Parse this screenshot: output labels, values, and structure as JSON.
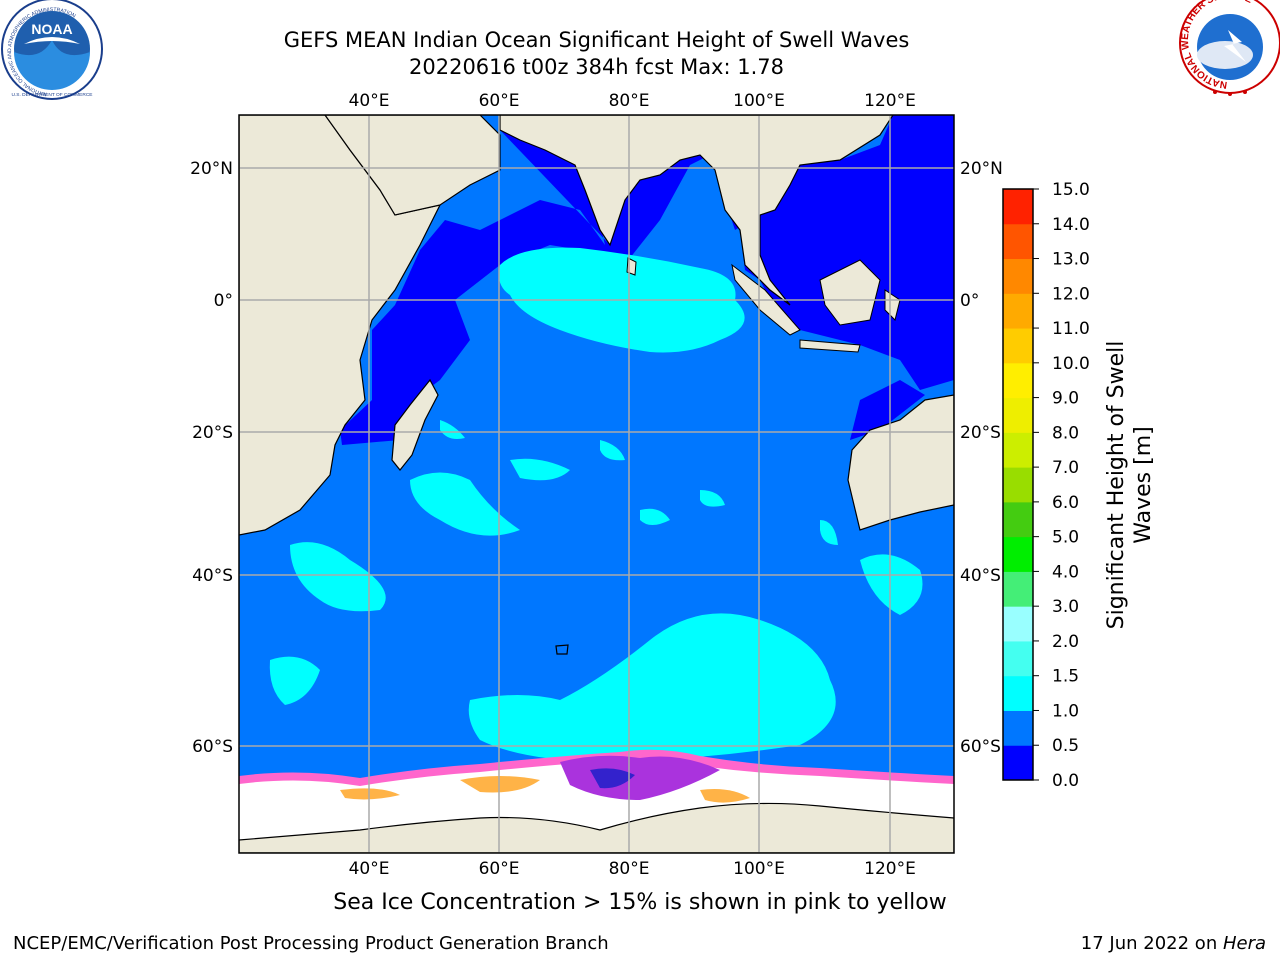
{
  "title": {
    "line1": "GEFS MEAN Indian Ocean Significant Height of Swell Waves",
    "line2": "20220616 t00z 384h fcst   Max: 1.78"
  },
  "map": {
    "lon_labels": [
      "40°E",
      "60°E",
      "80°E",
      "100°E",
      "120°E"
    ],
    "lat_labels": [
      "20°N",
      "0°",
      "20°S",
      "40°S",
      "60°S"
    ],
    "colors": {
      "land": "#ece9d8",
      "ocean_deep": "#0000ff",
      "ocean_mid": "#0077ff",
      "ocean_light": "#00ffff",
      "antarctic_ice": "#ffffff",
      "ice_edge_pink": "#ff66cc",
      "ice_edge_orange": "#ffb347",
      "grid": "#aaaaaa"
    }
  },
  "colorbar": {
    "label_line1": "Significant Height of Swell",
    "label_line2": "Waves [m]",
    "ticks": [
      "0.0",
      "0.5",
      "1.0",
      "1.5",
      "2.0",
      "3.0",
      "4.0",
      "5.0",
      "6.0",
      "7.0",
      "8.0",
      "9.0",
      "10.0",
      "11.0",
      "12.0",
      "13.0",
      "14.0",
      "15.0"
    ],
    "colors": [
      "#0000ff",
      "#0077ff",
      "#00ffff",
      "#44fff0",
      "#99ffff",
      "#44ee77",
      "#00ee00",
      "#44cc11",
      "#99dd00",
      "#ccee00",
      "#eeee00",
      "#ffee00",
      "#ffcc00",
      "#ffaa00",
      "#ff8800",
      "#ff5500",
      "#ff2200"
    ]
  },
  "logos": {
    "noaa_text": "NOAA",
    "noaa_ring_text": "NATIONAL OCEANIC AND ATMOSPHERIC ADMINISTRATION",
    "noaa_bottom_text": "U.S. DEPARTMENT OF COMMERCE",
    "nws_ring_text": "NATIONAL WEATHER SERVICE"
  },
  "caption": "Sea Ice Concentration > 15% is shown in pink to yellow",
  "footer": {
    "left": "NCEP/EMC/Verification Post Processing Product Generation Branch",
    "right_prefix": "17 Jun 2022 on ",
    "right_machine": "Hera"
  }
}
